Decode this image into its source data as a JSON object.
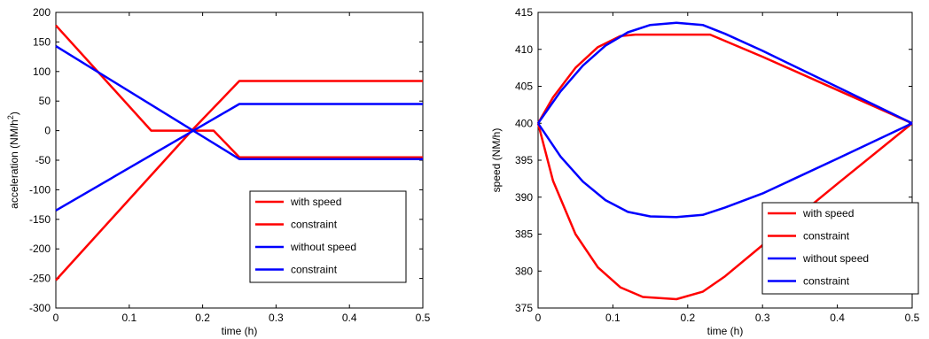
{
  "chart_data": [
    {
      "type": "line",
      "xlabel": "time (h)",
      "ylabel": "acceleration (NM/h",
      "ylabel_superscript": "2",
      "ylabel_suffix": ")",
      "xlim": [
        0,
        0.5
      ],
      "ylim": [
        -300,
        200
      ],
      "xticks": [
        0,
        0.1,
        0.2,
        0.3,
        0.4,
        0.5
      ],
      "xtick_labels": [
        "0",
        "0.1",
        "0.2",
        "0.3",
        "0.4",
        "0.5"
      ],
      "yticks": [
        -300,
        -250,
        -200,
        -150,
        -100,
        -50,
        0,
        50,
        100,
        150,
        200
      ],
      "ytick_labels": [
        "-300",
        "-250",
        "-200",
        "-150",
        "-100",
        "-50",
        "0",
        "50",
        "100",
        "150",
        "200"
      ],
      "grid": false,
      "legend_position": "bottom-right",
      "legend": [
        {
          "label": "with speed",
          "color": "#ff0000"
        },
        {
          "label": "constraint",
          "color": "#ff0000"
        },
        {
          "label": "without speed",
          "color": "#0000ff"
        },
        {
          "label": "constraint",
          "color": "#0000ff"
        }
      ],
      "series": [
        {
          "color": "#ff0000",
          "points": [
            [
              0,
              178
            ],
            [
              0.13,
              0
            ],
            [
              0.185,
              0
            ],
            [
              0.215,
              0
            ],
            [
              0.25,
              -45
            ],
            [
              0.5,
              -45
            ]
          ]
        },
        {
          "color": "#ff0000",
          "points": [
            [
              0,
              -253
            ],
            [
              0.185,
              0
            ],
            [
              0.25,
              84
            ],
            [
              0.5,
              84
            ]
          ]
        },
        {
          "color": "#0000ff",
          "points": [
            [
              0,
              143
            ],
            [
              0.25,
              -48
            ],
            [
              0.5,
              -48
            ]
          ]
        },
        {
          "color": "#0000ff",
          "points": [
            [
              0,
              -135
            ],
            [
              0.25,
              45
            ],
            [
              0.5,
              45
            ]
          ]
        }
      ]
    },
    {
      "type": "line",
      "xlabel": "time (h)",
      "ylabel": "speed (NM/h)",
      "xlim": [
        0,
        0.5
      ],
      "ylim": [
        375,
        415
      ],
      "xticks": [
        0,
        0.1,
        0.2,
        0.3,
        0.4,
        0.5
      ],
      "xtick_labels": [
        "0",
        "0.1",
        "0.2",
        "0.3",
        "0.4",
        "0.5"
      ],
      "yticks": [
        375,
        380,
        385,
        390,
        395,
        400,
        405,
        410,
        415
      ],
      "ytick_labels": [
        "375",
        "380",
        "385",
        "390",
        "395",
        "400",
        "405",
        "410",
        "415"
      ],
      "grid": false,
      "legend_position": "bottom-right",
      "legend": [
        {
          "label": "with speed",
          "color": "#ff0000"
        },
        {
          "label": "constraint",
          "color": "#ff0000"
        },
        {
          "label": "without speed",
          "color": "#0000ff"
        },
        {
          "label": "constraint",
          "color": "#0000ff"
        }
      ],
      "series": [
        {
          "color": "#ff0000",
          "points": [
            [
              0,
              400
            ],
            [
              0.02,
              403.5
            ],
            [
              0.05,
              407.5
            ],
            [
              0.08,
              410.3
            ],
            [
              0.11,
              411.8
            ],
            [
              0.13,
              412
            ],
            [
              0.185,
              412
            ],
            [
              0.23,
              412
            ],
            [
              0.3,
              409
            ],
            [
              0.4,
              404.5
            ],
            [
              0.5,
              400
            ]
          ]
        },
        {
          "color": "#ff0000",
          "points": [
            [
              0,
              400
            ],
            [
              0.02,
              392.2
            ],
            [
              0.05,
              385
            ],
            [
              0.08,
              380.5
            ],
            [
              0.11,
              377.8
            ],
            [
              0.14,
              376.5
            ],
            [
              0.185,
              376.2
            ],
            [
              0.22,
              377.2
            ],
            [
              0.25,
              379.3
            ],
            [
              0.3,
              383.5
            ],
            [
              0.4,
              391.8
            ],
            [
              0.5,
              400
            ]
          ]
        },
        {
          "color": "#0000ff",
          "points": [
            [
              0,
              400
            ],
            [
              0.03,
              404.3
            ],
            [
              0.06,
              407.8
            ],
            [
              0.09,
              410.5
            ],
            [
              0.12,
              412.3
            ],
            [
              0.15,
              413.3
            ],
            [
              0.185,
              413.6
            ],
            [
              0.22,
              413.3
            ],
            [
              0.25,
              412.1
            ],
            [
              0.3,
              409.8
            ],
            [
              0.4,
              404.9
            ],
            [
              0.5,
              400
            ]
          ]
        },
        {
          "color": "#0000ff",
          "points": [
            [
              0,
              400
            ],
            [
              0.03,
              395.5
            ],
            [
              0.06,
              392.1
            ],
            [
              0.09,
              389.6
            ],
            [
              0.12,
              388
            ],
            [
              0.15,
              387.4
            ],
            [
              0.185,
              387.3
            ],
            [
              0.22,
              387.6
            ],
            [
              0.25,
              388.6
            ],
            [
              0.3,
              390.5
            ],
            [
              0.4,
              395.2
            ],
            [
              0.5,
              400
            ]
          ]
        }
      ]
    }
  ]
}
